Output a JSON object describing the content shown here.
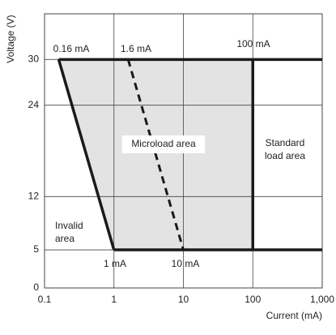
{
  "chart_data": {
    "type": "region",
    "x_label": "Current (mA)",
    "y_label": "Voltage (V)",
    "xscale": "log",
    "xlim": [
      0.1,
      1000
    ],
    "xticks": [
      0.1,
      1,
      10,
      100,
      {
        "value": 1000,
        "label": "1,000"
      }
    ],
    "ylim": [
      0,
      36
    ],
    "yticks": [
      0,
      5,
      12,
      24,
      30
    ],
    "grid": true,
    "region": {
      "x": [
        0.16,
        100,
        100,
        1
      ],
      "y": [
        30,
        30,
        5,
        5
      ],
      "color": "#e3e3e3"
    },
    "lines": [
      {
        "x": [
          0.16,
          1
        ],
        "y": [
          30,
          5
        ],
        "color": "#1a1a1a",
        "dashed": false
      },
      {
        "x": [
          0.16,
          1000
        ],
        "y": [
          30,
          30
        ],
        "color": "#1a1a1a",
        "dashed": false
      },
      {
        "x": [
          1,
          1000
        ],
        "y": [
          5,
          5
        ],
        "color": "#1a1a1a",
        "dashed": false
      },
      {
        "x": [
          100,
          100
        ],
        "y": [
          30,
          5
        ],
        "color": "#1a1a1a",
        "dashed": false
      },
      {
        "x": [
          1.6,
          10
        ],
        "y": [
          30,
          5
        ],
        "color": "#1a1a1a",
        "dashed": true
      }
    ],
    "annotations": [
      [
        "0.16 mA"
      ],
      [
        "1.6 mA"
      ],
      [
        "100 mA"
      ],
      [
        "1 mA"
      ],
      [
        "10 mA"
      ],
      [
        "Microload area"
      ],
      [
        "Standard",
        "load area"
      ],
      [
        "Invalid",
        "area"
      ]
    ]
  }
}
